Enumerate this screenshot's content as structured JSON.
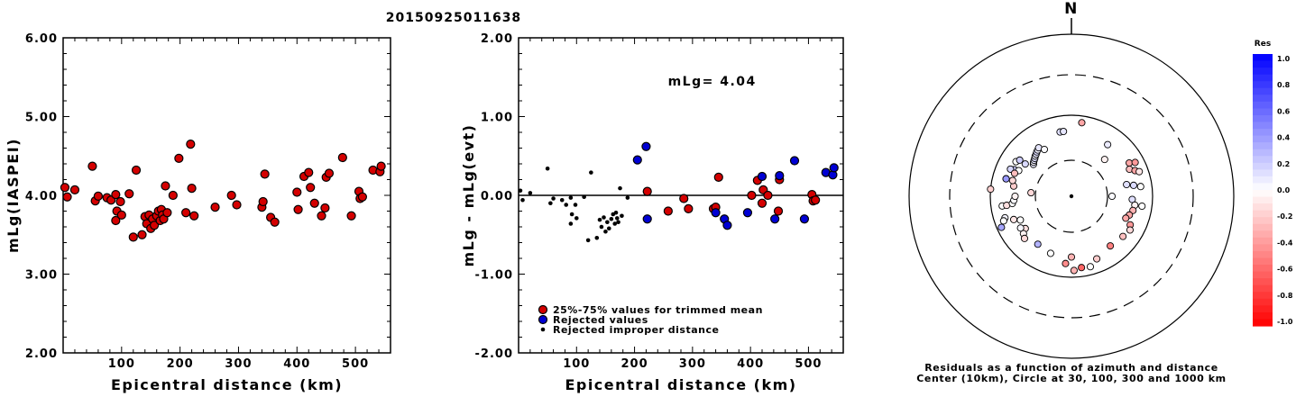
{
  "title": "20150925011638",
  "chart_data": [
    {
      "type": "scatter",
      "xlabel": "Epicentral distance (km)",
      "ylabel": "mLg(IASPEI)",
      "xlim": [
        0,
        560
      ],
      "ylim": [
        2.0,
        6.0
      ],
      "x_ticks": [
        100,
        200,
        300,
        400,
        500
      ],
      "x_tick_labels": [
        "100",
        "200",
        "300",
        "400",
        "500"
      ],
      "y_ticks": [
        2.0,
        3.0,
        4.0,
        5.0,
        6.0
      ],
      "y_tick_labels": [
        "2.00",
        "3.00",
        "4.00",
        "5.00",
        "6.00"
      ],
      "marker_color": "#d40000",
      "series": [
        {
          "points": [
            [
              3,
              4.1
            ],
            [
              7,
              3.98
            ],
            [
              20,
              4.07
            ],
            [
              50,
              4.37
            ],
            [
              55,
              3.93
            ],
            [
              60,
              3.99
            ],
            [
              75,
              3.97
            ],
            [
              82,
              3.94
            ],
            [
              90,
              4.01
            ],
            [
              90,
              3.68
            ],
            [
              92,
              3.8
            ],
            [
              98,
              3.92
            ],
            [
              100,
              3.75
            ],
            [
              113,
              4.02
            ],
            [
              120,
              3.47
            ],
            [
              125,
              4.32
            ],
            [
              135,
              3.5
            ],
            [
              140,
              3.73
            ],
            [
              143,
              3.64
            ],
            [
              147,
              3.75
            ],
            [
              150,
              3.58
            ],
            [
              153,
              3.7
            ],
            [
              156,
              3.62
            ],
            [
              160,
              3.74
            ],
            [
              163,
              3.8
            ],
            [
              166,
              3.68
            ],
            [
              168,
              3.82
            ],
            [
              170,
              3.75
            ],
            [
              172,
              3.7
            ],
            [
              175,
              4.12
            ],
            [
              178,
              3.78
            ],
            [
              188,
              4.0
            ],
            [
              198,
              4.47
            ],
            [
              210,
              3.78
            ],
            [
              218,
              4.65
            ],
            [
              220,
              4.09
            ],
            [
              224,
              3.74
            ],
            [
              260,
              3.85
            ],
            [
              288,
              4.0
            ],
            [
              297,
              3.88
            ],
            [
              340,
              3.85
            ],
            [
              342,
              3.92
            ],
            [
              345,
              4.27
            ],
            [
              355,
              3.72
            ],
            [
              362,
              3.66
            ],
            [
              400,
              4.04
            ],
            [
              402,
              3.82
            ],
            [
              412,
              4.24
            ],
            [
              420,
              4.29
            ],
            [
              423,
              4.1
            ],
            [
              430,
              3.9
            ],
            [
              442,
              3.74
            ],
            [
              448,
              3.84
            ],
            [
              450,
              4.23
            ],
            [
              455,
              4.28
            ],
            [
              478,
              4.48
            ],
            [
              493,
              3.74
            ],
            [
              506,
              4.05
            ],
            [
              508,
              3.96
            ],
            [
              512,
              3.98
            ],
            [
              530,
              4.32
            ],
            [
              542,
              4.3
            ],
            [
              544,
              4.37
            ]
          ]
        }
      ]
    },
    {
      "type": "scatter",
      "xlabel": "Epicentral distance (km)",
      "ylabel": "mLg - mLg(evt)",
      "xlim": [
        0,
        560
      ],
      "ylim": [
        -2.0,
        2.0
      ],
      "x_ticks": [
        100,
        200,
        300,
        400,
        500
      ],
      "x_tick_labels": [
        "100",
        "200",
        "300",
        "400",
        "500"
      ],
      "y_ticks": [
        -2.0,
        -1.0,
        0.0,
        1.0,
        2.0
      ],
      "y_tick_labels": [
        "-2.00",
        "-1.00",
        "0.00",
        "1.00",
        "2.00"
      ],
      "annotation": "mLg= 4.04",
      "reference_line_y": 0.0,
      "legend": {
        "placement": "bottom-left",
        "entries": [
          {
            "label": "25%-75% values for trimmed mean",
            "color": "#d40000",
            "marker": "large-circle"
          },
          {
            "label": "Rejected values",
            "color": "#0000d4",
            "marker": "large-circle"
          },
          {
            "label": "Rejected improper distance",
            "color": "#000000",
            "marker": "small-dot"
          }
        ]
      },
      "series": [
        {
          "name": "25%-75% values for trimmed mean",
          "color": "#d40000",
          "points": [
            [
              222,
              0.05
            ],
            [
              258,
              -0.2
            ],
            [
              285,
              -0.04
            ],
            [
              293,
              -0.17
            ],
            [
              336,
              -0.17
            ],
            [
              340,
              -0.15
            ],
            [
              345,
              0.23
            ],
            [
              402,
              0.0
            ],
            [
              412,
              0.19
            ],
            [
              420,
              -0.1
            ],
            [
              422,
              0.07
            ],
            [
              430,
              0.0
            ],
            [
              448,
              -0.2
            ],
            [
              450,
              0.2
            ],
            [
              506,
              0.01
            ],
            [
              508,
              -0.07
            ],
            [
              512,
              -0.06
            ]
          ]
        },
        {
          "name": "Rejected values",
          "color": "#0000d4",
          "points": [
            [
              205,
              0.45
            ],
            [
              220,
              0.62
            ],
            [
              222,
              -0.3
            ],
            [
              340,
              -0.22
            ],
            [
              355,
              -0.3
            ],
            [
              360,
              -0.38
            ],
            [
              395,
              -0.22
            ],
            [
              420,
              0.24
            ],
            [
              442,
              -0.3
            ],
            [
              450,
              0.25
            ],
            [
              476,
              0.44
            ],
            [
              493,
              -0.3
            ],
            [
              530,
              0.29
            ],
            [
              542,
              0.26
            ],
            [
              544,
              0.35
            ]
          ]
        },
        {
          "name": "Rejected improper distance",
          "color": "#000000",
          "points": [
            [
              3,
              0.06
            ],
            [
              7,
              -0.06
            ],
            [
              20,
              0.03
            ],
            [
              50,
              0.34
            ],
            [
              55,
              -0.1
            ],
            [
              60,
              -0.04
            ],
            [
              75,
              -0.06
            ],
            [
              82,
              -0.12
            ],
            [
              90,
              -0.03
            ],
            [
              90,
              -0.36
            ],
            [
              92,
              -0.24
            ],
            [
              98,
              -0.12
            ],
            [
              100,
              -0.29
            ],
            [
              113,
              -0.02
            ],
            [
              120,
              -0.57
            ],
            [
              125,
              0.29
            ],
            [
              135,
              -0.54
            ],
            [
              140,
              -0.31
            ],
            [
              143,
              -0.4
            ],
            [
              147,
              -0.28
            ],
            [
              150,
              -0.46
            ],
            [
              153,
              -0.34
            ],
            [
              156,
              -0.42
            ],
            [
              160,
              -0.3
            ],
            [
              163,
              -0.24
            ],
            [
              166,
              -0.36
            ],
            [
              168,
              -0.22
            ],
            [
              170,
              -0.29
            ],
            [
              172,
              -0.34
            ],
            [
              175,
              0.09
            ],
            [
              178,
              -0.26
            ],
            [
              188,
              -0.03
            ]
          ]
        }
      ]
    },
    {
      "type": "scatter",
      "north_label": "N",
      "caption_line1": "Residuals as a function of azimuth and distance",
      "caption_line2": "Center (10km), Circle at 30, 100, 300 and 1000 km",
      "colorbar": {
        "title": "Res",
        "ticks": [
          "1.0",
          "0.8",
          "0.6",
          "0.4",
          "0.2",
          "0.0",
          "-0.2",
          "-0.4",
          "-0.6",
          "-0.8",
          "-1.0"
        ],
        "max": 1.0,
        "min": -1.0,
        "positive_color": "#0000ff",
        "negative_color": "#ff0000"
      },
      "stations_azimuth_deg_dist_ring": [
        [
          -10,
          1.65,
          0.12
        ],
        [
          -7,
          1.65,
          0.1
        ],
        [
          8,
          1.85,
          -0.35
        ],
        [
          35,
          1.6,
          0.08
        ],
        [
          42,
          1.3,
          -0.05
        ],
        [
          -55,
          1.45,
          0.15
        ],
        [
          -50,
          1.3,
          0.08
        ],
        [
          -48,
          1.33,
          0.04
        ],
        [
          -46,
          1.35,
          0.1
        ],
        [
          -44,
          1.37,
          0.12
        ],
        [
          -42,
          1.4,
          0.06
        ],
        [
          -40,
          1.42,
          0.1
        ],
        [
          -38,
          1.45,
          0.14
        ],
        [
          -36,
          1.47,
          0.05
        ],
        [
          -34,
          1.5,
          0.1
        ],
        [
          -30,
          1.4,
          0.02
        ],
        [
          -58,
          1.65,
          0.0
        ],
        [
          -75,
          1.7,
          0.0
        ],
        [
          -65,
          1.6,
          0.2
        ],
        [
          -66,
          1.68,
          0.16
        ],
        [
          60,
          1.68,
          -0.35
        ],
        [
          65,
          1.62,
          -0.25
        ],
        [
          62,
          1.8,
          -0.4
        ],
        [
          68,
          1.72,
          -0.36
        ],
        [
          70,
          1.8,
          -0.1
        ],
        [
          78,
          1.45,
          0.12
        ],
        [
          80,
          1.6,
          0.14
        ],
        [
          82,
          1.75,
          0.0
        ],
        [
          90,
          1.1,
          0.02
        ],
        [
          93,
          1.55,
          0.12
        ],
        [
          98,
          1.62,
          -0.05
        ],
        [
          98,
          1.78,
          0.0
        ],
        [
          103,
          1.6,
          -0.3
        ],
        [
          108,
          1.55,
          -0.35
        ],
        [
          112,
          1.5,
          -0.35
        ],
        [
          116,
          1.65,
          -0.4
        ],
        [
          120,
          1.7,
          -0.15
        ],
        [
          128,
          1.65,
          -0.25
        ],
        [
          142,
          1.6,
          -0.5
        ],
        [
          158,
          1.7,
          -0.2
        ],
        [
          165,
          1.82,
          0.0
        ],
        [
          172,
          1.8,
          -0.6
        ],
        [
          178,
          1.85,
          -0.3
        ],
        [
          180,
          1.55,
          -0.3
        ],
        [
          185,
          1.7,
          -0.45
        ],
        [
          200,
          1.55,
          0.0
        ],
        [
          235,
          1.45,
          -0.12
        ],
        [
          232,
          1.55,
          -0.05
        ],
        [
          228,
          1.6,
          -0.15
        ],
        [
          238,
          1.53,
          0.03
        ],
        [
          245,
          1.45,
          0.0
        ],
        [
          248,
          1.58,
          -0.1
        ],
        [
          252,
          1.75,
          0.04
        ],
        [
          262,
          1.75,
          0.0
        ],
        [
          262,
          1.65,
          -0.12
        ],
        [
          263,
          1.52,
          0.0
        ],
        [
          266,
          1.48,
          0.02
        ],
        [
          270,
          1.45,
          -0.05
        ],
        [
          275,
          1.1,
          -0.15
        ],
        [
          250,
          1.8,
          0.0
        ],
        [
          246,
          1.9,
          0.35
        ],
        [
          215,
          1.5,
          0.3
        ],
        [
          280,
          1.5,
          -0.2
        ],
        [
          285,
          1.55,
          -0.15
        ],
        [
          275,
          2.0,
          -0.18
        ],
        [
          296,
          1.5,
          0.0
        ],
        [
          305,
          1.6,
          0.2
        ],
        [
          292,
          1.56,
          -0.26
        ],
        [
          285,
          1.7,
          0.4
        ],
        [
          0,
          0.0,
          0.0
        ]
      ]
    }
  ]
}
